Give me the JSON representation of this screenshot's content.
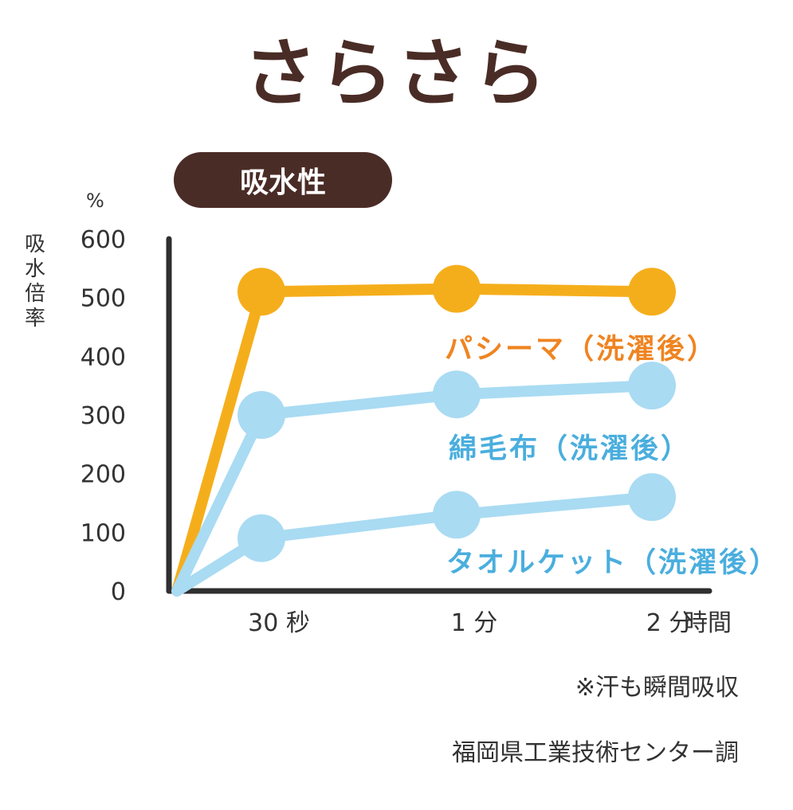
{
  "title": "さらさら",
  "colors": {
    "title": "#4a2c26",
    "pill_bg": "#4a2c26",
    "axis": "#2f2f2f",
    "text": "#333333",
    "pashima": "#f5ae1b",
    "pashima_label": "#ef8421",
    "blanket": "#a9dbf3",
    "blanket_label": "#4aaede"
  },
  "badge": {
    "label": "吸水性"
  },
  "footnotes": {
    "sweat": "※汗も瞬間吸収",
    "source": "福岡県工業技術センター調"
  },
  "chart_data": {
    "type": "line",
    "title": "吸水性",
    "ylabel": "吸水倍率",
    "yunit": "%",
    "xlabel": "時間",
    "ylim": [
      0,
      600
    ],
    "yticks": [
      "0",
      "100",
      "200",
      "300",
      "400",
      "500",
      "600"
    ],
    "x": [
      "0",
      "30 秒",
      "1 分",
      "2 分"
    ],
    "xtick_labels": [
      "30 秒",
      "1 分",
      "2 分"
    ],
    "grid": false,
    "series": [
      {
        "name": "パシーマ（洗濯後）",
        "values": [
          0,
          510,
          515,
          510
        ],
        "color": "#f5ae1b",
        "label_color": "#ef8421"
      },
      {
        "name": "綿毛布（洗濯後）",
        "values": [
          0,
          300,
          335,
          350
        ],
        "color": "#a9dbf3",
        "label_color": "#4aaede"
      },
      {
        "name": "タオルケット（洗濯後）",
        "values": [
          0,
          90,
          130,
          160
        ],
        "color": "#a9dbf3",
        "label_color": "#4aaede"
      }
    ]
  }
}
